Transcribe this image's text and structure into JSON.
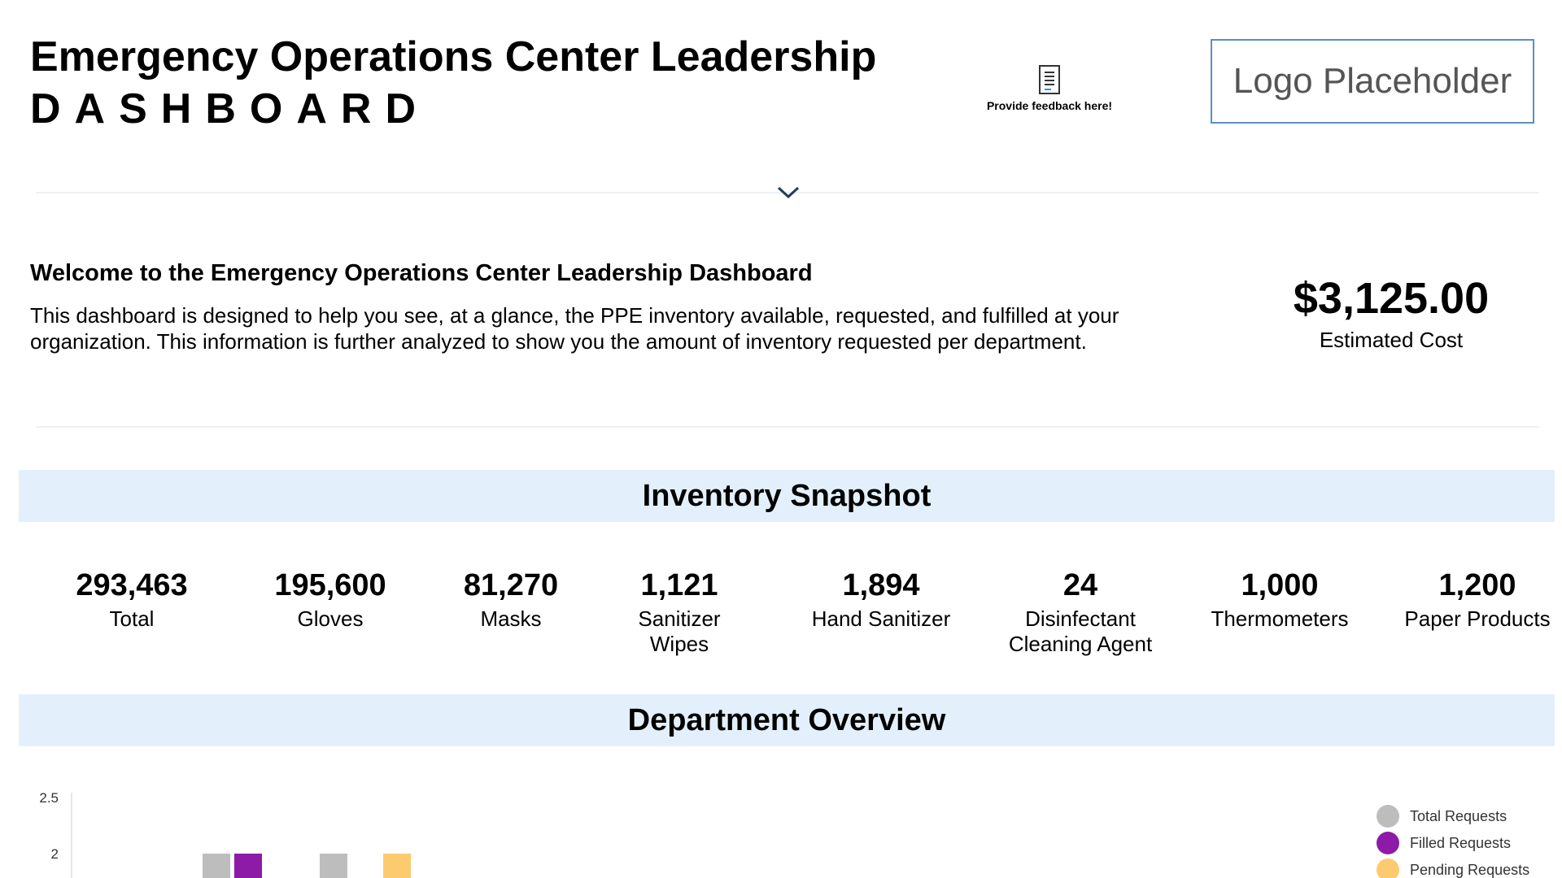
{
  "header": {
    "title_line1": "Emergency Operations Center Leadership",
    "title_line2": "DASHBOARD",
    "feedback_text": "Provide feedback here!",
    "logo_text": "Logo Placeholder"
  },
  "welcome": {
    "heading": "Welcome to the Emergency Operations Center Leadership Dashboard",
    "body": "This dashboard is designed to help you see, at a glance, the PPE inventory available, requested, and fulfilled at your organization. This information is further analyzed to show you the amount of inventory requested per department."
  },
  "cost": {
    "value": "$3,125.00",
    "label": "Estimated Cost"
  },
  "inventory": {
    "title": "Inventory Snapshot",
    "stats": [
      {
        "value": "293,463",
        "label": "Total"
      },
      {
        "value": "195,600",
        "label": "Gloves"
      },
      {
        "value": "81,270",
        "label": "Masks"
      },
      {
        "value": "1,121",
        "label": "Sanitizer Wipes"
      },
      {
        "value": "1,894",
        "label": "Hand Sanitizer"
      },
      {
        "value": "24",
        "label": "Disinfectant Cleaning Agent"
      },
      {
        "value": "1,000",
        "label": "Thermometers"
      },
      {
        "value": "1,200",
        "label": "Paper Products"
      }
    ]
  },
  "department": {
    "title": "Department Overview"
  },
  "colors": {
    "total": "#bdbdbd",
    "filled": "#8e1aa8",
    "pending": "#fccb6f",
    "section_bg": "#e3f0fc"
  },
  "chart_data": {
    "type": "bar",
    "y_ticks": [
      "2.5",
      "2"
    ],
    "ylim": [
      0,
      2.5
    ],
    "series": [
      {
        "name": "Total Requests",
        "color": "#bdbdbd",
        "values": [
          2,
          2
        ]
      },
      {
        "name": "Filled Requests",
        "color": "#8e1aa8",
        "values": [
          2
        ]
      },
      {
        "name": "Pending Requests",
        "color": "#fccb6f",
        "values": [
          2
        ]
      }
    ],
    "legend_position": "top-right"
  }
}
